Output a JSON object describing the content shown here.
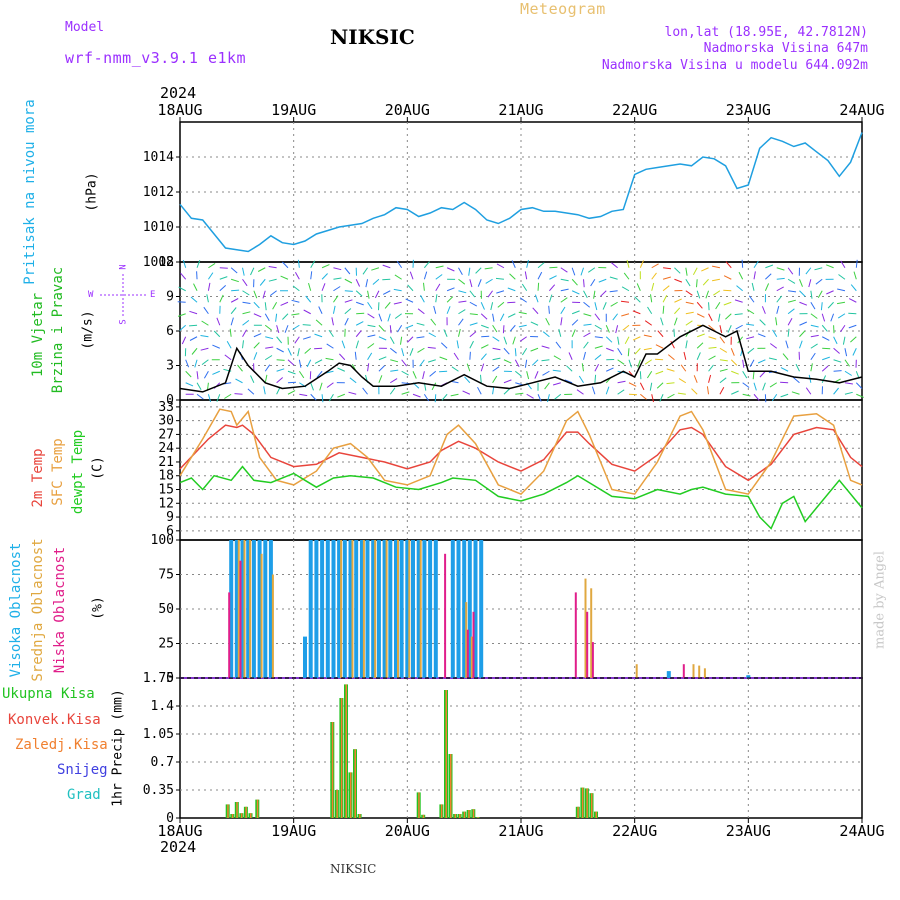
{
  "header": {
    "model_label": "Model",
    "model_name": "wrf-nmm_v3.9.1 e1km",
    "station": "NIKSIC",
    "product": "Meteogram",
    "lonlat": "lon,lat (18.95E, 42.7812N)",
    "elevation": "Nadmorska Visina 647m",
    "model_elevation": "Nadmorska Visina u modelu 644.092m",
    "year_top": "2024",
    "year_bottom": "2024",
    "footer_station": "NIKSIC",
    "credit": "made by Angel"
  },
  "colors": {
    "pressure": "#1f9fe0",
    "temp2m": "#e8453c",
    "sfc": "#e8a040",
    "dewpt": "#22cc22",
    "high_cloud": "#1e9ee8",
    "mid_cloud": "#e0a840",
    "low_cloud": "#e01e8a",
    "precip_total": "#22c422",
    "precip_conv": "#e8453c",
    "precip_frozen": "#f08030",
    "snow": "#4040e0",
    "hail": "#20c0c0",
    "model_text": "#9b30ff"
  },
  "compass": {
    "north": "N",
    "east": "E",
    "west": "W",
    "south": "S"
  },
  "chart_data": [
    {
      "type": "line",
      "panel": "pressure",
      "ylabel_main": "Pritisak na nivou mora",
      "unit": "(hPa)",
      "x_dates": [
        "18AUG",
        "19AUG",
        "20AUG",
        "21AUG",
        "22AUG",
        "23AUG",
        "24AUG"
      ],
      "ylim": [
        1008,
        1016
      ],
      "yticks": [
        1008,
        1010,
        1012,
        1014
      ],
      "series": [
        {
          "x": [
            0,
            0.1,
            0.2,
            0.3,
            0.4,
            0.5,
            0.6,
            0.7,
            0.8,
            0.9,
            1.0,
            1.1,
            1.2,
            1.3,
            1.4,
            1.5,
            1.6,
            1.7,
            1.8,
            1.9,
            2.0,
            2.1,
            2.2,
            2.3,
            2.4,
            2.5,
            2.6,
            2.7,
            2.8,
            2.9,
            3.0,
            3.1,
            3.2,
            3.3,
            3.4,
            3.5,
            3.6,
            3.7,
            3.8,
            3.9,
            4.0,
            4.1,
            4.2,
            4.3,
            4.4,
            4.5,
            4.6,
            4.7,
            4.8,
            4.9,
            5.0,
            5.1,
            5.2,
            5.3,
            5.4,
            5.5,
            5.6,
            5.7,
            5.8,
            5.9,
            6.0
          ],
          "y": [
            1011.3,
            1010.5,
            1010.4,
            1009.6,
            1008.8,
            1008.7,
            1008.6,
            1009.0,
            1009.5,
            1009.1,
            1009.0,
            1009.2,
            1009.6,
            1009.8,
            1010.0,
            1010.1,
            1010.2,
            1010.5,
            1010.7,
            1011.1,
            1011.0,
            1010.6,
            1010.8,
            1011.1,
            1011.0,
            1011.4,
            1011.0,
            1010.4,
            1010.2,
            1010.5,
            1011.0,
            1011.1,
            1010.9,
            1010.9,
            1010.8,
            1010.7,
            1010.5,
            1010.6,
            1010.9,
            1011.0,
            1013.0,
            1013.3,
            1013.4,
            1013.5,
            1013.6,
            1013.5,
            1014.0,
            1013.9,
            1013.5,
            1012.2,
            1012.4,
            1014.5,
            1015.1,
            1014.9,
            1014.6,
            1014.8,
            1014.3,
            1013.8,
            1012.9,
            1013.7,
            1015.4
          ]
        }
      ]
    },
    {
      "type": "line",
      "panel": "wind",
      "ylabel_line1": "10m Vjetar",
      "ylabel_line2": "Brzina i Pravac",
      "unit": "(m/s)",
      "ylim": [
        0,
        12
      ],
      "yticks": [
        0,
        3,
        6,
        9,
        12
      ],
      "series": [
        {
          "name": "speed",
          "x": [
            0,
            0.2,
            0.4,
            0.5,
            0.6,
            0.75,
            0.9,
            1.1,
            1.3,
            1.4,
            1.5,
            1.6,
            1.7,
            1.9,
            2.1,
            2.3,
            2.5,
            2.7,
            2.9,
            3.1,
            3.3,
            3.5,
            3.7,
            3.9,
            4.0,
            4.1,
            4.2,
            4.4,
            4.6,
            4.7,
            4.8,
            4.9,
            5.0,
            5.2,
            5.4,
            5.6,
            5.8,
            6.0
          ],
          "y": [
            1.0,
            0.7,
            1.5,
            4.5,
            3.0,
            1.5,
            1.0,
            1.2,
            2.5,
            3.2,
            3.0,
            2.0,
            1.2,
            1.2,
            1.5,
            1.2,
            2.2,
            1.2,
            1.0,
            1.5,
            2.0,
            1.2,
            1.5,
            2.5,
            2.0,
            4.0,
            4.0,
            5.5,
            6.5,
            6.0,
            5.5,
            6.0,
            2.5,
            2.5,
            2.0,
            1.8,
            1.5,
            2.0
          ]
        }
      ],
      "wind_rows": [
        0.5,
        1.5,
        2.5,
        3.5,
        4.5,
        5.5,
        6.5,
        7.5,
        8.5,
        9.5,
        10.5,
        11.5
      ],
      "wind_columns": 60
    },
    {
      "type": "line",
      "panel": "temperature",
      "ylabel_temp": "2m Temp",
      "ylabel_sfc": "SFC Temp",
      "ylabel_dew": "dewpt Temp",
      "unit": "(C)",
      "ylim": [
        4,
        34.5
      ],
      "yticks": [
        6,
        9,
        12,
        15,
        18,
        21,
        24,
        27,
        30,
        33
      ],
      "series": [
        {
          "name": "2m Temp",
          "x": [
            0,
            0.25,
            0.4,
            0.5,
            0.55,
            0.65,
            0.8,
            1.0,
            1.2,
            1.4,
            1.6,
            1.8,
            2.0,
            2.2,
            2.3,
            2.45,
            2.6,
            2.8,
            3.0,
            3.2,
            3.4,
            3.5,
            3.6,
            3.8,
            4.0,
            4.2,
            4.4,
            4.5,
            4.6,
            4.8,
            5.0,
            5.2,
            5.4,
            5.6,
            5.75,
            5.9,
            6.0
          ],
          "y": [
            19.5,
            26.0,
            29.0,
            28.5,
            29.0,
            27.0,
            22.0,
            20.0,
            20.5,
            23.0,
            22.0,
            21.0,
            19.5,
            21.0,
            23.5,
            25.5,
            24.0,
            21.0,
            19.0,
            21.5,
            27.5,
            27.5,
            25.0,
            20.5,
            19.0,
            22.5,
            28.0,
            28.5,
            27.0,
            20.0,
            17.0,
            20.5,
            27.0,
            28.5,
            28.0,
            22.0,
            20.0
          ]
        },
        {
          "name": "SFC Temp",
          "x": [
            0,
            0.2,
            0.35,
            0.45,
            0.5,
            0.6,
            0.7,
            0.85,
            1.0,
            1.2,
            1.35,
            1.5,
            1.65,
            1.8,
            2.0,
            2.2,
            2.35,
            2.45,
            2.6,
            2.8,
            3.0,
            3.2,
            3.4,
            3.5,
            3.6,
            3.8,
            4.0,
            4.2,
            4.4,
            4.5,
            4.6,
            4.8,
            5.0,
            5.2,
            5.4,
            5.6,
            5.75,
            5.9,
            6.0
          ],
          "y": [
            18.0,
            26.0,
            32.5,
            32.0,
            29.0,
            32.0,
            22.0,
            17.0,
            16.0,
            19.0,
            24.0,
            25.0,
            22.0,
            17.0,
            16.0,
            18.0,
            27.0,
            29.0,
            25.0,
            16.0,
            14.0,
            19.0,
            30.0,
            32.0,
            27.0,
            15.0,
            14.0,
            21.0,
            31.0,
            32.0,
            28.0,
            15.0,
            14.0,
            21.0,
            31.0,
            31.5,
            29.0,
            17.0,
            16.0
          ]
        },
        {
          "name": "dewpt Temp",
          "x": [
            0,
            0.1,
            0.2,
            0.3,
            0.45,
            0.55,
            0.65,
            0.8,
            1.0,
            1.1,
            1.2,
            1.35,
            1.5,
            1.7,
            1.9,
            2.1,
            2.3,
            2.4,
            2.6,
            2.8,
            3.0,
            3.2,
            3.4,
            3.5,
            3.6,
            3.8,
            4.0,
            4.2,
            4.4,
            4.5,
            4.6,
            4.8,
            5.0,
            5.1,
            5.2,
            5.3,
            5.4,
            5.5,
            5.6,
            5.8,
            6.0
          ],
          "y": [
            16.5,
            17.5,
            15.0,
            18.0,
            17.0,
            20.0,
            17.0,
            16.5,
            18.5,
            17.0,
            15.5,
            17.5,
            18.0,
            17.5,
            15.5,
            15.0,
            16.5,
            17.5,
            17.0,
            13.5,
            12.5,
            14.0,
            16.5,
            18.0,
            16.5,
            13.5,
            13.0,
            15.0,
            14.0,
            15.0,
            15.5,
            14.0,
            13.5,
            9.0,
            6.5,
            12.0,
            13.5,
            8.0,
            11.0,
            17.0,
            11.0
          ]
        }
      ]
    },
    {
      "type": "bar",
      "panel": "clouds",
      "ylabel_high": "Visoka Oblacnost",
      "ylabel_mid": "Srednja Oblacnost",
      "ylabel_low": "Niska Oblacnost",
      "unit": "(%)",
      "ylim": [
        0,
        100
      ],
      "yticks": [
        0,
        25,
        50,
        75,
        100
      ],
      "series": [
        {
          "name": "Visoka Oblacnost",
          "x": [
            0.45,
            0.5,
            0.55,
            0.6,
            0.65,
            0.7,
            0.75,
            0.8,
            1.1,
            1.15,
            1.2,
            1.25,
            1.3,
            1.35,
            1.4,
            1.45,
            1.5,
            1.55,
            1.6,
            1.65,
            1.7,
            1.75,
            1.8,
            1.85,
            1.9,
            1.95,
            2.0,
            2.05,
            2.1,
            2.15,
            2.2,
            2.25,
            2.4,
            2.45,
            2.5,
            2.55,
            2.6,
            2.65,
            4.3,
            5.0
          ],
          "y": [
            100,
            100,
            100,
            100,
            100,
            100,
            100,
            100,
            30,
            100,
            100,
            100,
            100,
            100,
            100,
            100,
            100,
            100,
            100,
            100,
            100,
            100,
            100,
            100,
            100,
            100,
            100,
            100,
            100,
            100,
            100,
            100,
            100,
            100,
            100,
            100,
            100,
            100,
            5,
            2
          ]
        },
        {
          "name": "Srednja Oblacnost",
          "x": [
            0.5,
            0.55,
            0.6,
            0.7,
            0.8,
            1.4,
            1.5,
            1.6,
            1.7,
            1.8,
            1.9,
            2.0,
            2.1,
            2.5,
            2.55,
            3.55,
            3.6,
            4.0,
            4.5,
            4.55,
            4.6
          ],
          "y": [
            100,
            100,
            100,
            90,
            75,
            100,
            100,
            100,
            100,
            100,
            100,
            100,
            100,
            55,
            30,
            72,
            65,
            10,
            10,
            9,
            7
          ]
        },
        {
          "name": "Niska Oblacnost",
          "x": [
            0.45,
            0.55,
            2.35,
            2.55,
            2.6,
            3.5,
            3.6,
            3.65,
            4.45
          ],
          "y": [
            62,
            85,
            90,
            35,
            48,
            62,
            48,
            26,
            10
          ]
        }
      ]
    },
    {
      "type": "bar",
      "panel": "precip",
      "ylabel_total": "Ukupna Kisa",
      "ylabel_conv": "Konvek.Kisa",
      "ylabel_frozen": "Zaledj.Kisa",
      "ylabel_snow": "Snijeg",
      "ylabel_hail": "Grad",
      "unit": "1hr Precip (mm)",
      "ylim": [
        0,
        1.75
      ],
      "yticks": [
        0,
        0.35,
        0.7,
        1.05,
        1.4,
        1.75
      ],
      "ytick_labels": [
        "0",
        "0.35",
        "0.7",
        "1.05",
        "1.4",
        "1.75"
      ],
      "series": [
        {
          "name": "Ukupna Kisa",
          "x": [
            0.42,
            0.46,
            0.5,
            0.54,
            0.58,
            0.62,
            0.68,
            1.34,
            1.38,
            1.42,
            1.46,
            1.5,
            1.54,
            1.58,
            2.1,
            2.14,
            2.3,
            2.34,
            2.38,
            2.42,
            2.46,
            2.5,
            2.54,
            2.58,
            2.62,
            3.5,
            3.54,
            3.58,
            3.62,
            3.66
          ],
          "y": [
            0.17,
            0.05,
            0.2,
            0.06,
            0.14,
            0.06,
            0.23,
            1.2,
            0.35,
            1.5,
            1.67,
            0.57,
            0.86,
            0.05,
            0.32,
            0.04,
            0.17,
            1.6,
            0.8,
            0.05,
            0.05,
            0.08,
            0.1,
            0.11,
            0.01,
            0.14,
            0.38,
            0.37,
            0.31,
            0.08
          ]
        }
      ]
    }
  ]
}
